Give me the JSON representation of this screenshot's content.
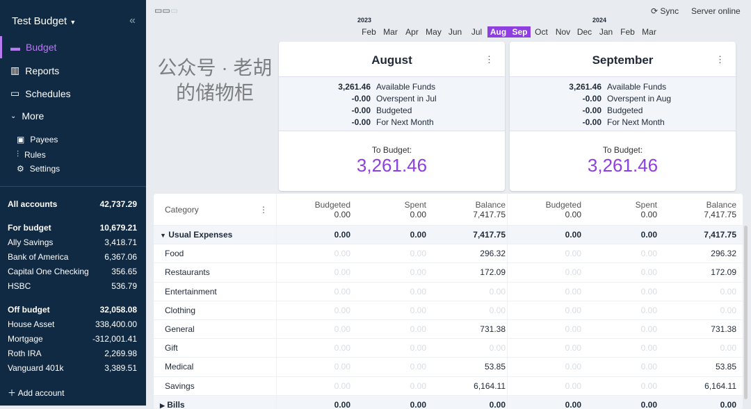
{
  "sidebar": {
    "title": "Test Budget",
    "nav": [
      "Budget",
      "Reports",
      "Schedules",
      "More"
    ],
    "sub": [
      "Payees",
      "Rules",
      "Settings"
    ],
    "all": {
      "label": "All accounts",
      "value": "42,737.29"
    },
    "for_budget": {
      "label": "For budget",
      "value": "10,679.21",
      "accounts": [
        [
          "Ally Savings",
          "3,418.71"
        ],
        [
          "Bank of America",
          "6,367.06"
        ],
        [
          "Capital One Checking",
          "356.65"
        ],
        [
          "HSBC",
          "536.79"
        ]
      ]
    },
    "off_budget": {
      "label": "Off budget",
      "value": "32,058.08",
      "accounts": [
        [
          "House Asset",
          "338,400.00"
        ],
        [
          "Mortgage",
          "-312,001.41"
        ],
        [
          "Roth IRA",
          "2,269.98"
        ],
        [
          "Vanguard 401k",
          "3,389.51"
        ]
      ]
    },
    "add": "Add account"
  },
  "header": {
    "sync": "Sync",
    "status": "Server online",
    "year1": "2023",
    "year2": "2024",
    "months": [
      "Feb",
      "Mar",
      "Apr",
      "May",
      "Jun",
      "Jul",
      "Aug",
      "Sep",
      "Oct",
      "Nov",
      "Dec",
      "Jan",
      "Feb",
      "Mar"
    ]
  },
  "cards": [
    {
      "month": "August",
      "rows": [
        [
          "3,261.46",
          "Available Funds"
        ],
        [
          "-0.00",
          "Overspent in Jul"
        ],
        [
          "-0.00",
          "Budgeted"
        ],
        [
          "-0.00",
          "For Next Month"
        ]
      ],
      "to_budget_label": "To Budget:",
      "to_budget": "3,261.46"
    },
    {
      "month": "September",
      "rows": [
        [
          "3,261.46",
          "Available Funds"
        ],
        [
          "-0.00",
          "Overspent in Aug"
        ],
        [
          "-0.00",
          "Budgeted"
        ],
        [
          "-0.00",
          "For Next Month"
        ]
      ],
      "to_budget_label": "To Budget:",
      "to_budget": "3,261.46"
    }
  ],
  "table": {
    "category_label": "Category",
    "cols": [
      "Budgeted",
      "Spent",
      "Balance"
    ],
    "totals": [
      [
        "0.00",
        "0.00",
        "7,417.75"
      ],
      [
        "0.00",
        "0.00",
        "7,417.75"
      ]
    ],
    "rows": [
      {
        "name": "Usual Expenses",
        "group": true,
        "m1": [
          "0.00",
          "0.00",
          "7,417.75"
        ],
        "m2": [
          "0.00",
          "0.00",
          "7,417.75"
        ]
      },
      {
        "name": "Food",
        "m1": [
          "0.00",
          "0.00",
          "296.32"
        ],
        "m2": [
          "0.00",
          "0.00",
          "296.32"
        ]
      },
      {
        "name": "Restaurants",
        "m1": [
          "0.00",
          "0.00",
          "172.09"
        ],
        "m2": [
          "0.00",
          "0.00",
          "172.09"
        ]
      },
      {
        "name": "Entertainment",
        "m1": [
          "0.00",
          "0.00",
          "0.00"
        ],
        "m2": [
          "0.00",
          "0.00",
          "0.00"
        ]
      },
      {
        "name": "Clothing",
        "m1": [
          "0.00",
          "0.00",
          "0.00"
        ],
        "m2": [
          "0.00",
          "0.00",
          "0.00"
        ]
      },
      {
        "name": "General",
        "m1": [
          "0.00",
          "0.00",
          "731.38"
        ],
        "m2": [
          "0.00",
          "0.00",
          "731.38"
        ]
      },
      {
        "name": "Gift",
        "m1": [
          "0.00",
          "0.00",
          "0.00"
        ],
        "m2": [
          "0.00",
          "0.00",
          "0.00"
        ]
      },
      {
        "name": "Medical",
        "m1": [
          "0.00",
          "0.00",
          "53.85"
        ],
        "m2": [
          "0.00",
          "0.00",
          "53.85"
        ]
      },
      {
        "name": "Savings",
        "m1": [
          "0.00",
          "0.00",
          "6,164.11"
        ],
        "m2": [
          "0.00",
          "0.00",
          "6,164.11"
        ]
      },
      {
        "name": "Bills",
        "group": true,
        "collapsed": true,
        "m1": [
          "0.00",
          "0.00",
          "0.00"
        ],
        "m2": [
          "0.00",
          "0.00",
          "0.00"
        ]
      }
    ]
  },
  "watermark": "公众号 · 老胡的储物柜"
}
